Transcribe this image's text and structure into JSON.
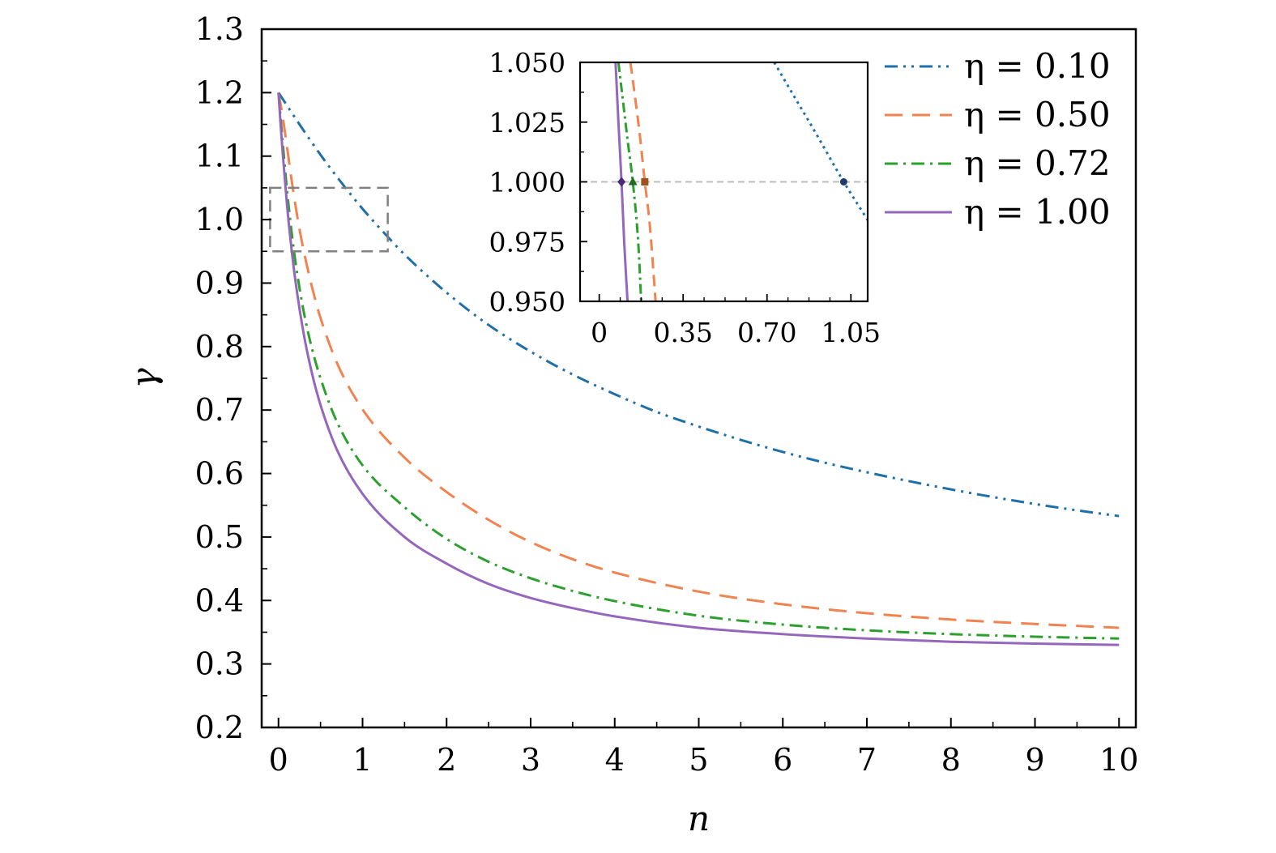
{
  "chart_data": [
    {
      "type": "line",
      "xlabel": "n",
      "ylabel": "γ",
      "xlim": [
        -0.2,
        10.2
      ],
      "ylim": [
        0.2,
        1.3
      ],
      "x_ticks": [
        "0",
        "1",
        "2",
        "3",
        "4",
        "5",
        "6",
        "7",
        "8",
        "9",
        "10"
      ],
      "y_ticks": [
        "0.2",
        "0.3",
        "0.4",
        "0.5",
        "0.6",
        "0.7",
        "0.8",
        "0.9",
        "1.0",
        "1.1",
        "1.2",
        "1.3"
      ],
      "grid": false,
      "legend_position": "top-right",
      "series": [
        {
          "name": "η = 0.10",
          "color": "#1f6fa8",
          "style": "dash-dot-dot",
          "x": [
            0,
            0.25,
            0.5,
            0.75,
            1,
            1.25,
            1.5,
            2,
            2.5,
            3,
            3.5,
            4,
            4.5,
            5,
            5.5,
            6,
            6.5,
            7,
            7.5,
            8,
            8.5,
            9,
            9.5,
            10
          ],
          "y": [
            1.2,
            1.15,
            1.102,
            1.058,
            1.017,
            0.98,
            0.945,
            0.885,
            0.834,
            0.792,
            0.756,
            0.725,
            0.697,
            0.674,
            0.653,
            0.634,
            0.617,
            0.602,
            0.588,
            0.575,
            0.563,
            0.552,
            0.542,
            0.533
          ]
        },
        {
          "name": "η = 0.50",
          "color": "#f0834f",
          "style": "dashed",
          "x": [
            0,
            0.05,
            0.1,
            0.15,
            0.2,
            0.25,
            0.3,
            0.4,
            0.5,
            0.7,
            1,
            1.5,
            2,
            2.5,
            3,
            3.5,
            4,
            5,
            6,
            7,
            8,
            9,
            10
          ],
          "y": [
            1.2,
            1.162,
            1.116,
            1.068,
            1.024,
            0.985,
            0.951,
            0.893,
            0.845,
            0.773,
            0.701,
            0.625,
            0.571,
            0.527,
            0.492,
            0.465,
            0.444,
            0.414,
            0.394,
            0.38,
            0.37,
            0.363,
            0.357
          ]
        },
        {
          "name": "η = 0.72",
          "color": "#2ca02c",
          "style": "dash-dot",
          "x": [
            0,
            0.05,
            0.1,
            0.15,
            0.2,
            0.3,
            0.4,
            0.5,
            0.7,
            1,
            1.5,
            2,
            2.5,
            3,
            3.5,
            4,
            5,
            6,
            7,
            8,
            9,
            10
          ],
          "y": [
            1.2,
            1.122,
            1.048,
            0.987,
            0.935,
            0.855,
            0.796,
            0.75,
            0.68,
            0.613,
            0.547,
            0.497,
            0.461,
            0.435,
            0.415,
            0.399,
            0.376,
            0.362,
            0.353,
            0.347,
            0.343,
            0.34
          ]
        },
        {
          "name": "η = 1.00",
          "color": "#9467bd",
          "style": "solid",
          "x": [
            0,
            0.025,
            0.05,
            0.1,
            0.15,
            0.2,
            0.3,
            0.4,
            0.5,
            0.7,
            1,
            1.5,
            2,
            2.5,
            3,
            3.5,
            4,
            5,
            6,
            7,
            8,
            9,
            10
          ],
          "y": [
            1.2,
            1.15,
            1.105,
            1.025,
            0.96,
            0.905,
            0.82,
            0.757,
            0.708,
            0.636,
            0.568,
            0.5,
            0.458,
            0.426,
            0.404,
            0.388,
            0.375,
            0.357,
            0.347,
            0.34,
            0.335,
            0.332,
            0.33
          ]
        }
      ],
      "highlight_box": {
        "x": [
          -0.1,
          1.3
        ],
        "y": [
          0.95,
          1.05
        ]
      }
    },
    {
      "type": "line",
      "role": "inset",
      "xlim": [
        -0.08,
        1.12
      ],
      "ylim": [
        0.95,
        1.05
      ],
      "x_ticks": [
        "0",
        "0.35",
        "0.70",
        "1.05"
      ],
      "y_ticks": [
        "0.950",
        "0.975",
        "1.000",
        "1.025",
        "1.050"
      ],
      "reference_line_y": 1.0,
      "series": [
        {
          "name": "η = 0.10",
          "color": "#1f6fa8",
          "style": "dotted",
          "x": [
            0.73,
            0.8,
            0.9,
            1.02,
            1.12
          ],
          "y": [
            1.05,
            1.038,
            1.021,
            1.0,
            0.984
          ]
        },
        {
          "name": "η = 0.50",
          "color": "#f0834f",
          "style": "dashed",
          "x": [
            0.13,
            0.15,
            0.17,
            0.19,
            0.21,
            0.235
          ],
          "y": [
            1.05,
            1.035,
            1.019,
            1.0,
            0.983,
            0.95
          ]
        },
        {
          "name": "η = 0.72",
          "color": "#2ca02c",
          "style": "dash-dot",
          "x": [
            0.08,
            0.1,
            0.12,
            0.14,
            0.163,
            0.175
          ],
          "y": [
            1.05,
            1.033,
            1.016,
            1.0,
            0.974,
            0.95
          ]
        },
        {
          "name": "η = 1.00",
          "color": "#9467bd",
          "style": "solid",
          "x": [
            0.068,
            0.08,
            0.093,
            0.104,
            0.118
          ],
          "y": [
            1.05,
            1.025,
            1.0,
            0.975,
            0.95
          ]
        }
      ],
      "markers": [
        {
          "x": 1.02,
          "y": 1.0,
          "shape": "circle",
          "color": "#1d3a6b"
        },
        {
          "x": 0.19,
          "y": 1.0,
          "shape": "square",
          "color": "#a0521d"
        },
        {
          "x": 0.14,
          "y": 1.0,
          "shape": "triangle",
          "color": "#1f6b1f"
        },
        {
          "x": 0.093,
          "y": 1.0,
          "shape": "diamond",
          "color": "#4b2a78"
        }
      ]
    }
  ]
}
